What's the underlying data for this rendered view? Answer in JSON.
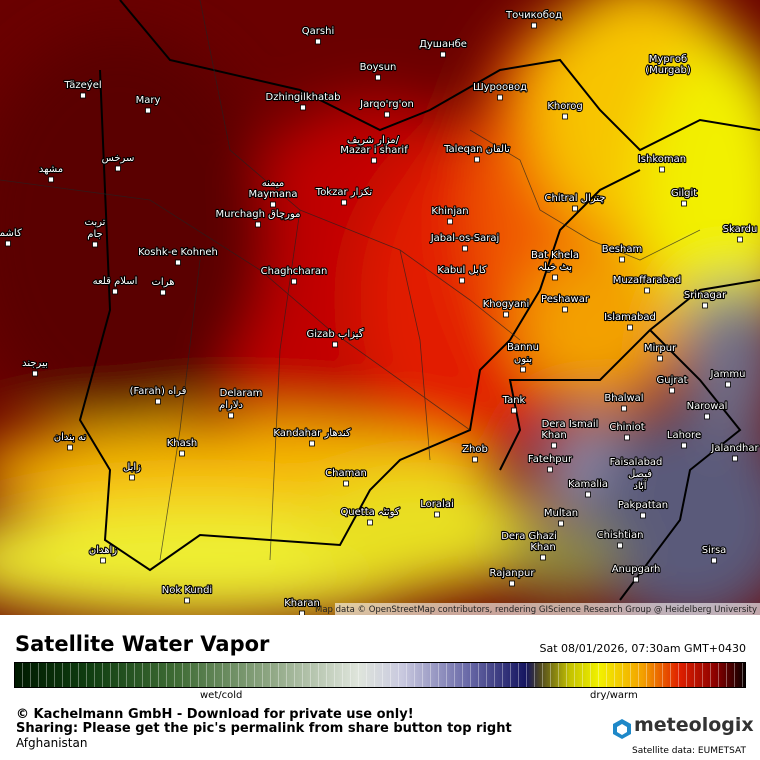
{
  "map": {
    "places": [
      "Qarshi",
      "Душанбе",
      "Точикобод",
      "Boysun",
      "Täzeýel",
      "Mary",
      "Dzhingilkhatab",
      "Jarqo'rg'on",
      "Шуроовод",
      "Мургоб",
      "(Murgab)",
      "Khorog",
      "مزار شریف/",
      "Mazar i sharif",
      "Taleqan تالقان",
      "سرخس",
      "مشهد",
      "Ishkoman",
      "Gilgit",
      "میمنه",
      "Maymana",
      "Tokzar تکزار",
      "Chitral چترال",
      "Murchagh مورچاق",
      "Khinjan",
      "تربت",
      "جام",
      "کاشمر",
      "Jabal-os-Saraj",
      "Skardu",
      "Besham",
      "Koshk-e Kohneh",
      "Bat Khela",
      "بٹ خیلہ",
      "Kabul کابل",
      "Chaghcharan",
      "Muzaffarabad",
      "اسلام قلعه",
      "هرات",
      "Peshawar",
      "Khogyani",
      "Srinagar",
      "Islamabad",
      "Gizab گیزاب",
      "Mirpur",
      "Bannu",
      "بنوں",
      "بیرجند",
      "Jammu",
      "Gujrat",
      "(Farah) فراه",
      "Delaram",
      "دلارام",
      "Bhalwal",
      "Tank",
      "Narowal",
      "Dera Ismail",
      "Khan",
      "Chiniot",
      "نه بندان",
      "Kandahar کندهار",
      "Khash",
      "Lahore",
      "Jalandhar",
      "Zhob",
      "Fatehpur",
      "Faisalabad",
      "فیصل",
      "آباد",
      "زابل",
      "Chaman",
      "Kamalia",
      "Loralai",
      "Quetta کوئٹہ",
      "Multan",
      "Pakpattan",
      "Chishtian",
      "Dera Ghazi",
      "Khan",
      "زاهدان",
      "Sirsa",
      "Anupgarh",
      "Rajanpur",
      "Nok Kundi",
      "Kharan"
    ],
    "attribution": "Map data © OpenStreetMap contributors, rendering GIScience Research Group @ Heidelberg University"
  },
  "header": {
    "title": "Satellite Water Vapor",
    "timestamp": "Sat 08/01/2026, 07:30am GMT+0430"
  },
  "legend": {
    "left_label": "wet/cold",
    "right_label": "dry/warm"
  },
  "footer": {
    "copyright": "© Kachelmann GmbH - Download for private use only!",
    "sharing": "Sharing: Please get the pic's permalink from share button top right",
    "region": "Afghanistan",
    "brand": "meteologix",
    "source": "Satellite data: EUMETSAT"
  }
}
